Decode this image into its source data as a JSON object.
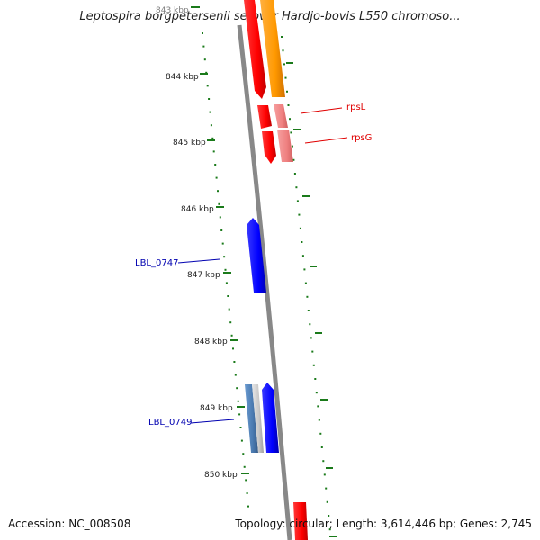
{
  "map": {
    "title": "Leptospira borgpetersenii serovar Hardjo-bovis L550 chromoso...",
    "accession": "Accession: NC_008508",
    "topology": "Topology: circular; Length: 3,614,446 bp; Genes: 2,745",
    "ticks": [
      "843 kbp",
      "844 kbp",
      "845 kbp",
      "846 kbp",
      "847 kbp",
      "848 kbp",
      "849 kbp",
      "850 kbp"
    ],
    "gene_labels": {
      "rpsL": "rpsL",
      "rpsG": "rpsG",
      "lbl0747": "LBL_0747",
      "lbl0749": "LBL_0749"
    },
    "colors": {
      "backbone": "#888888",
      "tick_mark": "#1a7a1a",
      "gene_red": "#ff0000",
      "gene_light_red": "#f08080",
      "gene_orange": "#ff9900",
      "gene_blue": "#0000ff",
      "gene_steelblue": "#4a7ab0",
      "gene_grey": "#c8c8c8"
    }
  }
}
